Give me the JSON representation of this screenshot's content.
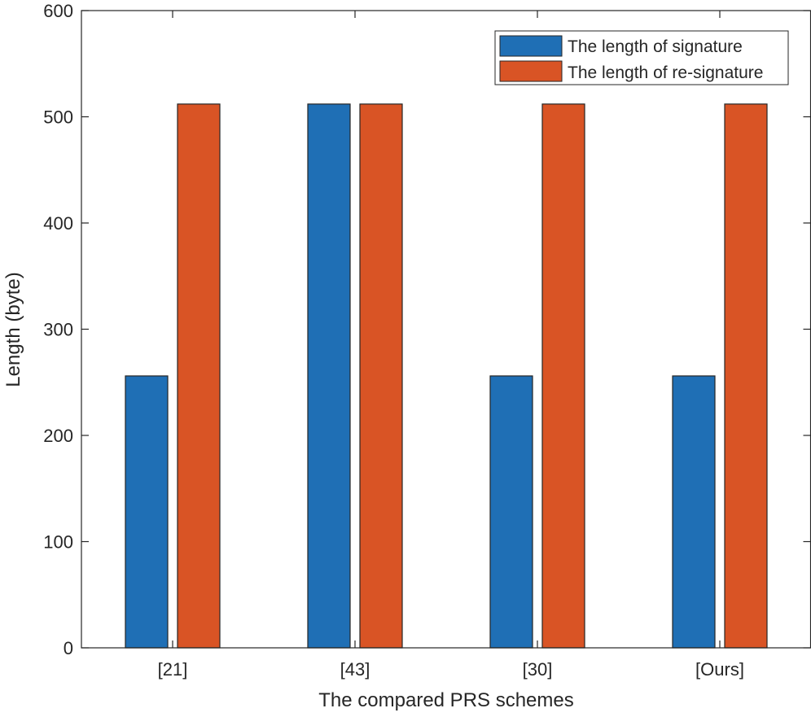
{
  "chart_data": {
    "type": "bar",
    "title": "",
    "xlabel": "The compared PRS schemes",
    "ylabel": "Length (byte)",
    "categories": [
      "[21]",
      "[43]",
      "[30]",
      "[Ours]"
    ],
    "ylim": [
      0,
      600
    ],
    "yticks": [
      0,
      100,
      200,
      300,
      400,
      500,
      600
    ],
    "ytick_labels": [
      "0",
      "100",
      "200",
      "300",
      "400",
      "500",
      "600"
    ],
    "grid": false,
    "legend_position": "top-right",
    "series": [
      {
        "name": "The length of signature",
        "values": [
          256,
          512,
          256,
          256
        ],
        "color": "#1f6fb5"
      },
      {
        "name": "The length of re-signature",
        "values": [
          512,
          512,
          512,
          512
        ],
        "color": "#d95425"
      }
    ]
  }
}
